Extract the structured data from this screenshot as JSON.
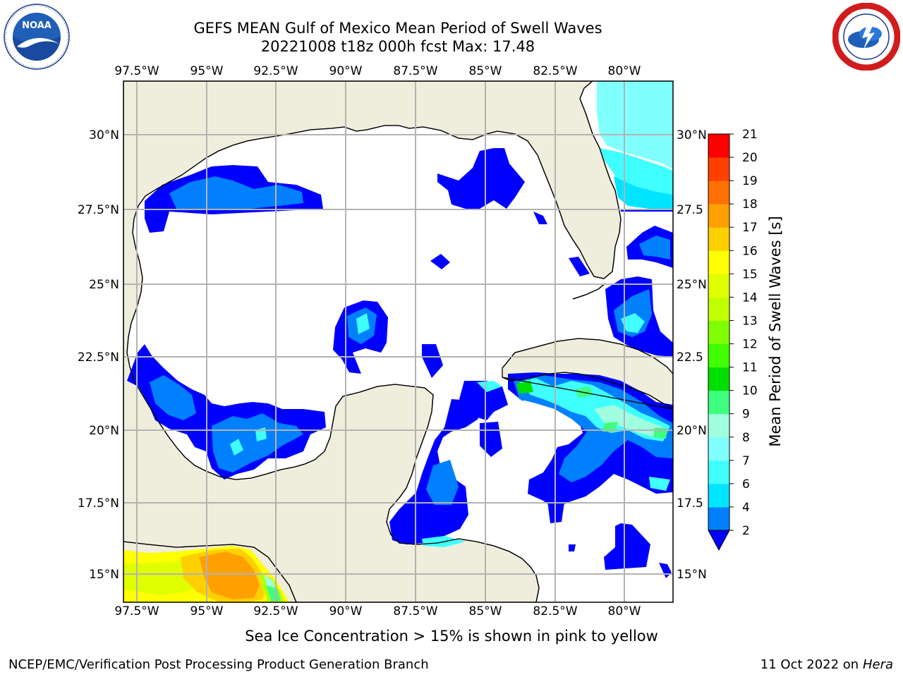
{
  "header": {
    "title_line1": "GEFS MEAN Gulf of Mexico Mean Period of Swell Waves",
    "title_line2": "20221008 t18z 000h fcst   Max: 17.48"
  },
  "logos": {
    "left": {
      "name": "NOAA",
      "ring_text": "NATIONAL OCEANIC AND ATMOSPHERIC ADMINISTRATION · U.S. DEPARTMENT OF COMMERCE"
    },
    "right": {
      "name": "NATIONAL WEATHER SERVICE"
    }
  },
  "map": {
    "lon_labels": [
      "97.5°W",
      "95°W",
      "92.5°W",
      "90°W",
      "87.5°W",
      "85°W",
      "82.5°W",
      "80°W"
    ],
    "lat_labels_left": [
      "30°N",
      "27.5°N",
      "25°N",
      "22.5°N",
      "20°N",
      "17.5°N",
      "15°N"
    ],
    "lat_labels_right": [
      "30°N",
      "27.5",
      "25°N",
      "22.5",
      "20°N",
      "17.5",
      "15°N"
    ],
    "colors": {
      "land": "#efeedd",
      "ocean": "#ffffff",
      "grid": "#b3b3b3"
    }
  },
  "colorbar": {
    "label": "Mean Period of Swell Waves [s]",
    "ticks": [
      "2",
      "4",
      "6",
      "7",
      "8",
      "9",
      "10",
      "11",
      "12",
      "13",
      "14",
      "15",
      "16",
      "17",
      "18",
      "19",
      "20",
      "21"
    ],
    "colors": [
      "#0000ff",
      "#0080ff",
      "#00e5ff",
      "#40ffff",
      "#80ffff",
      "#a0ffdf",
      "#40ff80",
      "#00e000",
      "#40ff00",
      "#80ff00",
      "#c0ff00",
      "#e0ff00",
      "#ffff00",
      "#ffd000",
      "#ffa000",
      "#ff7000",
      "#ff4000",
      "#ff0000"
    ],
    "extend_color": "#0000ff"
  },
  "footer": {
    "note": "Sea Ice Concentration > 15% is shown in pink to yellow",
    "credit_left": "NCEP/EMC/Verification Post Processing Product Generation Branch",
    "credit_right_date": "11 Oct 2022 on ",
    "credit_right_host": "Hera"
  }
}
